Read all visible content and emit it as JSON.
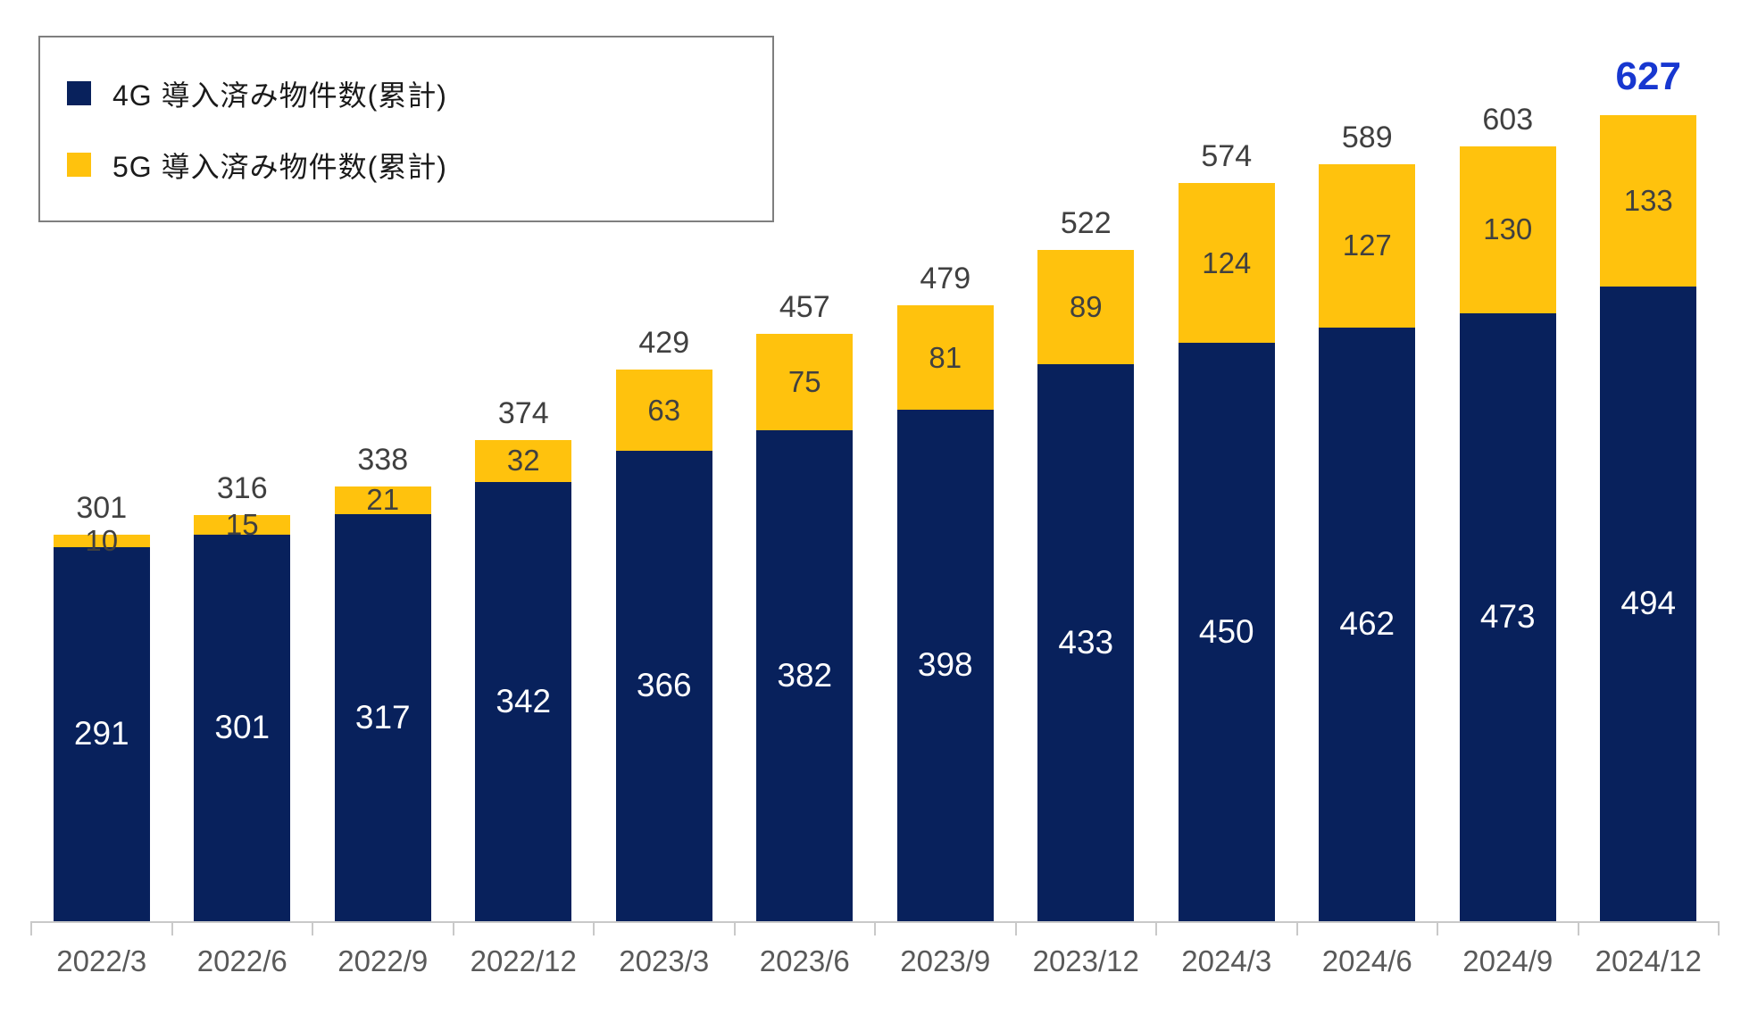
{
  "legend": {
    "items": [
      {
        "label": "4G 導入済み物件数(累計)",
        "color": "#08215c"
      },
      {
        "label": "5G 導入済み物件数(累計)",
        "color": "#ffc20d"
      }
    ]
  },
  "chart_data": {
    "type": "bar",
    "stacked": true,
    "title": "",
    "xlabel": "",
    "ylabel": "",
    "grid": false,
    "legend_position": "top-left",
    "ylim": [
      0,
      650
    ],
    "categories": [
      "2022/3",
      "2022/6",
      "2022/9",
      "2022/12",
      "2023/3",
      "2023/6",
      "2023/9",
      "2023/12",
      "2024/3",
      "2024/6",
      "2024/9",
      "2024/12"
    ],
    "series": [
      {
        "name": "4G 導入済み物件数(累計)",
        "color": "#08215c",
        "values": [
          291,
          301,
          317,
          342,
          366,
          382,
          398,
          433,
          450,
          462,
          473,
          494
        ]
      },
      {
        "name": "5G 導入済み物件数(累計)",
        "color": "#ffc20d",
        "values": [
          10,
          15,
          21,
          32,
          63,
          75,
          81,
          89,
          124,
          127,
          130,
          133
        ]
      }
    ],
    "totals": [
      301,
      316,
      338,
      374,
      429,
      457,
      479,
      522,
      574,
      589,
      603,
      627
    ],
    "highlighted_total": 627,
    "highlight_last_total": true
  },
  "colors": {
    "bar_4g": "#08215c",
    "bar_5g": "#ffc20d",
    "label_on_4g": "#ffffff",
    "label_on_5g": "#404040",
    "total_label": "#404040",
    "highlight_total": "#1737d0",
    "axis": "#c9c9c9",
    "x_tick_label": "#595959"
  }
}
